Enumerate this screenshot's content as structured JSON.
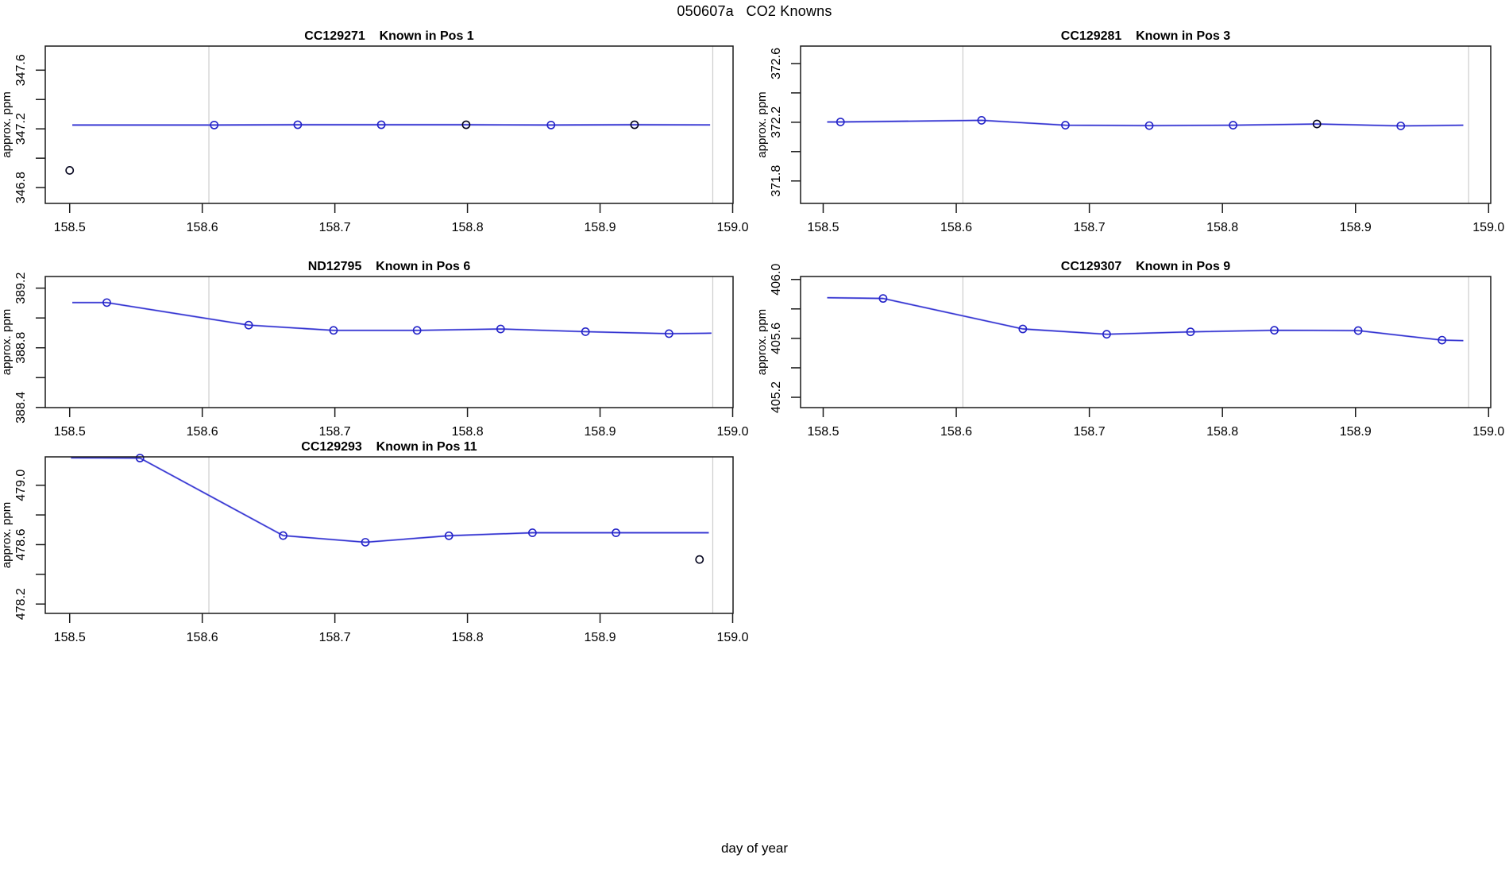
{
  "page": {
    "title": "050607a   CO2 Knowns",
    "x_axis_label": "day of year",
    "background": "#ffffff"
  },
  "colors": {
    "axis": "#1a1a1a",
    "tick_text": "#000000",
    "line_blue": "#3434cf",
    "line_light": "#a8a8f2",
    "point_blue": "#2424c8",
    "point_black": "#05051e",
    "reference_gray": "#cccccc"
  },
  "axes": {
    "y_axis_label": "approx. ppm",
    "x_ticks": [
      158.5,
      158.6,
      158.7,
      158.8,
      158.9,
      159.0
    ],
    "x_tick_labels": [
      "158.5",
      "158.6",
      "158.7",
      "158.8",
      "158.9",
      "159.0"
    ]
  },
  "chart_data": [
    {
      "type": "line",
      "id": "CC129271",
      "pos_label": "Known in Pos 1",
      "ylabel": "approx. ppm",
      "xlim": [
        158.4816,
        159.0003
      ],
      "ylim": [
        346.692,
        347.764
      ],
      "y_ticks_labeled": [
        346.8,
        347.2,
        347.6
      ],
      "y_ticks_minor": [
        347.0,
        347.4
      ],
      "vlines": [
        158.605,
        158.985
      ],
      "line": {
        "x": [
          158.502,
          158.609,
          158.672,
          158.735,
          158.799,
          158.863,
          158.926,
          158.983
        ],
        "y": [
          347.226,
          347.226,
          347.228,
          347.228,
          347.228,
          347.226,
          347.228,
          347.227
        ]
      },
      "points": [
        {
          "x": 158.5,
          "y": 346.917,
          "color": "black"
        },
        {
          "x": 158.609,
          "y": 347.226,
          "color": "blue"
        },
        {
          "x": 158.672,
          "y": 347.228,
          "color": "blue"
        },
        {
          "x": 158.735,
          "y": 347.228,
          "color": "blue"
        },
        {
          "x": 158.799,
          "y": 347.228,
          "color": "black"
        },
        {
          "x": 158.863,
          "y": 347.226,
          "color": "blue"
        },
        {
          "x": 158.926,
          "y": 347.228,
          "color": "black"
        }
      ]
    },
    {
      "type": "line",
      "id": "CC129281",
      "pos_label": "Known in Pos 3",
      "ylabel": "approx. ppm",
      "xlim": [
        158.483,
        159.0016
      ],
      "ylim": [
        371.647,
        372.719
      ],
      "y_ticks_labeled": [
        371.8,
        372.2,
        372.6
      ],
      "y_ticks_minor": [
        372.0,
        372.4
      ],
      "vlines": [
        158.605,
        158.985
      ],
      "line": {
        "x": [
          158.503,
          158.513,
          158.619,
          158.682,
          158.745,
          158.808,
          158.871,
          158.934,
          158.981
        ],
        "y": [
          372.202,
          372.202,
          372.213,
          372.18,
          372.177,
          372.18,
          372.188,
          372.175,
          372.18
        ]
      },
      "points": [
        {
          "x": 158.513,
          "y": 372.202,
          "color": "blue"
        },
        {
          "x": 158.619,
          "y": 372.213,
          "color": "blue"
        },
        {
          "x": 158.682,
          "y": 372.18,
          "color": "blue"
        },
        {
          "x": 158.745,
          "y": 372.177,
          "color": "blue"
        },
        {
          "x": 158.808,
          "y": 372.18,
          "color": "blue"
        },
        {
          "x": 158.871,
          "y": 372.188,
          "color": "black"
        },
        {
          "x": 158.934,
          "y": 372.175,
          "color": "blue"
        }
      ]
    },
    {
      "type": "line",
      "id": "ND12795",
      "pos_label": "Known in Pos 6",
      "ylabel": "approx. ppm",
      "xlim": [
        158.4816,
        159.0003
      ],
      "ylim": [
        388.399,
        389.278
      ],
      "y_ticks_labeled": [
        388.4,
        388.8,
        389.2
      ],
      "y_ticks_minor": [
        388.6,
        389.0
      ],
      "vlines": [
        158.605,
        158.985
      ],
      "line": {
        "x": [
          158.502,
          158.528,
          158.635,
          158.699,
          158.762,
          158.825,
          158.889,
          158.952,
          158.984
        ],
        "y": [
          389.103,
          389.103,
          388.952,
          388.917,
          388.917,
          388.926,
          388.908,
          388.895,
          388.898
        ]
      },
      "points": [
        {
          "x": 158.528,
          "y": 389.103,
          "color": "blue"
        },
        {
          "x": 158.635,
          "y": 388.952,
          "color": "blue"
        },
        {
          "x": 158.699,
          "y": 388.917,
          "color": "blue"
        },
        {
          "x": 158.762,
          "y": 388.917,
          "color": "blue"
        },
        {
          "x": 158.825,
          "y": 388.926,
          "color": "blue"
        },
        {
          "x": 158.889,
          "y": 388.908,
          "color": "blue"
        },
        {
          "x": 158.952,
          "y": 388.895,
          "color": "blue"
        }
      ]
    },
    {
      "type": "line",
      "id": "CC129307",
      "pos_label": "Known in Pos 9",
      "ylabel": "approx. ppm",
      "xlim": [
        158.483,
        159.0016
      ],
      "ylim": [
        405.13,
        406.02
      ],
      "y_ticks_labeled": [
        405.2,
        405.6,
        406.0
      ],
      "y_ticks_minor": [
        405.4,
        405.8
      ],
      "vlines": [
        158.605,
        158.985
      ],
      "line": {
        "x": [
          158.503,
          158.545,
          158.65,
          158.713,
          158.776,
          158.839,
          158.902,
          158.965,
          158.981
        ],
        "y": [
          405.876,
          405.871,
          405.664,
          405.628,
          405.644,
          405.655,
          405.653,
          405.588,
          405.585
        ]
      },
      "points": [
        {
          "x": 158.545,
          "y": 405.871,
          "color": "blue"
        },
        {
          "x": 158.65,
          "y": 405.664,
          "color": "blue"
        },
        {
          "x": 158.713,
          "y": 405.628,
          "color": "blue"
        },
        {
          "x": 158.776,
          "y": 405.644,
          "color": "blue"
        },
        {
          "x": 158.839,
          "y": 405.655,
          "color": "blue"
        },
        {
          "x": 158.902,
          "y": 405.653,
          "color": "blue"
        },
        {
          "x": 158.965,
          "y": 405.588,
          "color": "blue"
        }
      ]
    },
    {
      "type": "line",
      "id": "CC129293",
      "pos_label": "Known in Pos 11",
      "ylabel": "approx. ppm",
      "xlim": [
        158.4816,
        159.0003
      ],
      "ylim": [
        478.137,
        479.191
      ],
      "y_ticks_labeled": [
        478.2,
        478.6,
        479.0
      ],
      "y_ticks_minor": [
        478.4,
        478.8
      ],
      "vlines": [
        158.605,
        158.985
      ],
      "line": {
        "x": [
          158.501,
          158.553,
          158.661,
          158.723,
          158.786,
          158.849,
          158.912,
          158.982
        ],
        "y": [
          479.185,
          479.183,
          478.661,
          478.616,
          478.66,
          478.68,
          478.68,
          478.68
        ]
      },
      "points": [
        {
          "x": 158.553,
          "y": 479.183,
          "color": "blue"
        },
        {
          "x": 158.661,
          "y": 478.661,
          "color": "blue"
        },
        {
          "x": 158.723,
          "y": 478.616,
          "color": "blue"
        },
        {
          "x": 158.786,
          "y": 478.66,
          "color": "blue"
        },
        {
          "x": 158.849,
          "y": 478.68,
          "color": "blue"
        },
        {
          "x": 158.912,
          "y": 478.68,
          "color": "blue"
        },
        {
          "x": 158.975,
          "y": 478.5,
          "color": "black"
        }
      ]
    }
  ]
}
